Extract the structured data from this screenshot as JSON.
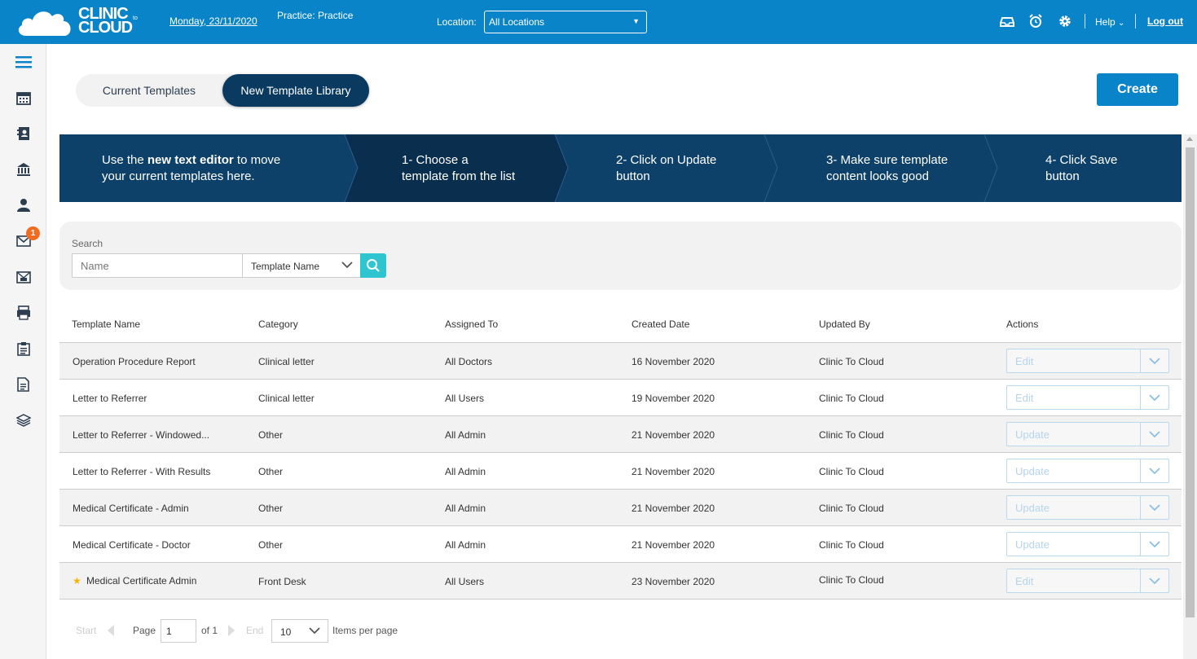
{
  "header": {
    "logo_text_line1": "CLINIC",
    "logo_text_line2": "CLOUD",
    "logo_to": "to",
    "date": "Monday, 23/11/2020",
    "practice": "Practice: Practice",
    "location_label": "Location:",
    "location_value": "All Locations",
    "help_label": "Help",
    "logout_label": "Log out"
  },
  "sidebar": {
    "items": [
      "menu",
      "calendar",
      "contacts",
      "billing",
      "patients",
      "messages",
      "inbox",
      "printer",
      "clipboard",
      "document",
      "layers"
    ],
    "message_badge": "1"
  },
  "tabs": {
    "current": "Current Templates",
    "new_library": "New Template Library",
    "active": "New Template Library"
  },
  "create_label": "Create",
  "banner": {
    "intro_prefix": "Use the ",
    "intro_bold": "new text editor",
    "intro_suffix": " to move",
    "intro_line2": "your current templates here.",
    "step1_line1": "1- Choose a",
    "step1_line2": "template from the list",
    "step2_line1": "2- Click on Update",
    "step2_line2": "button",
    "step3_line1": "3- Make sure template",
    "step3_line2": "content looks good",
    "step4_line1": "4- Click Save",
    "step4_line2": "button"
  },
  "search": {
    "label": "Search",
    "placeholder": "Name",
    "field_select": "Template Name"
  },
  "table": {
    "headers": {
      "name": "Template Name",
      "category": "Category",
      "assigned": "Assigned To",
      "created": "Created Date",
      "updated_by": "Updated By",
      "actions": "Actions"
    },
    "rows": [
      {
        "name": "Operation Procedure Report",
        "category": "Clinical letter",
        "assigned": "All Doctors",
        "created": "16 November 2020",
        "updated_by": "Clinic To Cloud",
        "action": "Edit",
        "starred": false
      },
      {
        "name": "Letter to Referrer",
        "category": "Clinical letter",
        "assigned": "All Users",
        "created": "19 November 2020",
        "updated_by": "Clinic To Cloud",
        "action": "Edit",
        "starred": false
      },
      {
        "name": "Letter to Referrer - Windowed...",
        "category": "Other",
        "assigned": "All Admin",
        "created": "21 November 2020",
        "updated_by": "Clinic To Cloud",
        "action": "Update",
        "starred": false
      },
      {
        "name": "Letter to Referrer - With Results",
        "category": "Other",
        "assigned": "All Admin",
        "created": "21 November 2020",
        "updated_by": "Clinic To Cloud",
        "action": "Update",
        "starred": false
      },
      {
        "name": "Medical Certificate - Admin",
        "category": "Other",
        "assigned": "All Admin",
        "created": "21 November 2020",
        "updated_by": "Clinic To Cloud",
        "action": "Update",
        "starred": false
      },
      {
        "name": "Medical Certificate - Doctor",
        "category": "Other",
        "assigned": "All Admin",
        "created": "21 November 2020",
        "updated_by": "Clinic To Cloud",
        "action": "Update",
        "starred": false
      },
      {
        "name": "Medical Certificate Admin",
        "category": "Front Desk",
        "assigned": "All Users",
        "created": "23 November 2020",
        "updated_by": "Clinic To Cloud",
        "action": "Edit",
        "starred": true
      }
    ]
  },
  "pager": {
    "start": "Start",
    "page_label": "Page",
    "page_value": "1",
    "of_label": "of 1",
    "end": "End",
    "page_size": "10",
    "items_per_page": "Items per page"
  },
  "colors": {
    "brand_blue": "#0a84c8",
    "dark_navy": "#0e416a",
    "search_teal": "#2ec5d1",
    "badge_orange": "#f26b22",
    "star_gold": "#f5b400"
  }
}
